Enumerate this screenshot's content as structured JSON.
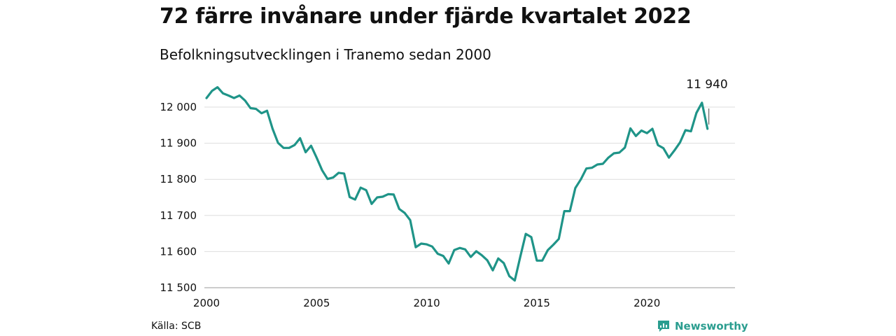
{
  "title": "72 färre invånare under fjärde kvartalet 2022",
  "subtitle": "Befolkningsutvecklingen i Tranemo sedan 2000",
  "source": "Källa: SCB",
  "brand": "Newsworthy",
  "colors": {
    "line": "#1f9488",
    "grid": "#dddddd",
    "brand": "#2a9d8f"
  },
  "chart_data": {
    "type": "line",
    "title": "72 färre invånare under fjärde kvartalet 2022",
    "subtitle": "Befolkningsutvecklingen i Tranemo sedan 2000",
    "xlabel": "",
    "ylabel": "",
    "xlim": [
      2000,
      2024
    ],
    "ylim": [
      11500,
      12000
    ],
    "x_ticks": [
      2000,
      2005,
      2010,
      2015,
      2020
    ],
    "x_tick_labels": [
      "2000",
      "2005",
      "2010",
      "2015",
      "2020"
    ],
    "y_ticks": [
      11500,
      11600,
      11700,
      11800,
      11900,
      12000
    ],
    "y_tick_labels": [
      "11 500",
      "11 600",
      "11 700",
      "11 800",
      "11 900",
      "12 000"
    ],
    "grid": true,
    "legend": "none",
    "end_label": "11 940",
    "series": [
      {
        "values": [
          {
            "x": 2000.0,
            "y": 12025
          },
          {
            "x": 2000.25,
            "y": 12045
          },
          {
            "x": 2000.5,
            "y": 12055
          },
          {
            "x": 2000.75,
            "y": 12038
          },
          {
            "x": 2001.0,
            "y": 12032
          },
          {
            "x": 2001.25,
            "y": 12025
          },
          {
            "x": 2001.5,
            "y": 12032
          },
          {
            "x": 2001.75,
            "y": 12018
          },
          {
            "x": 2002.0,
            "y": 11997
          },
          {
            "x": 2002.25,
            "y": 11995
          },
          {
            "x": 2002.5,
            "y": 11983
          },
          {
            "x": 2002.75,
            "y": 11990
          },
          {
            "x": 2003.0,
            "y": 11940
          },
          {
            "x": 2003.25,
            "y": 11901
          },
          {
            "x": 2003.5,
            "y": 11887
          },
          {
            "x": 2003.75,
            "y": 11887
          },
          {
            "x": 2004.0,
            "y": 11895
          },
          {
            "x": 2004.25,
            "y": 11914
          },
          {
            "x": 2004.5,
            "y": 11875
          },
          {
            "x": 2004.75,
            "y": 11893
          },
          {
            "x": 2005.0,
            "y": 11860
          },
          {
            "x": 2005.25,
            "y": 11825
          },
          {
            "x": 2005.5,
            "y": 11801
          },
          {
            "x": 2005.75,
            "y": 11805
          },
          {
            "x": 2006.0,
            "y": 11818
          },
          {
            "x": 2006.25,
            "y": 11816
          },
          {
            "x": 2006.5,
            "y": 11751
          },
          {
            "x": 2006.75,
            "y": 11744
          },
          {
            "x": 2007.0,
            "y": 11777
          },
          {
            "x": 2007.25,
            "y": 11770
          },
          {
            "x": 2007.5,
            "y": 11732
          },
          {
            "x": 2007.75,
            "y": 11750
          },
          {
            "x": 2008.0,
            "y": 11752
          },
          {
            "x": 2008.25,
            "y": 11759
          },
          {
            "x": 2008.5,
            "y": 11758
          },
          {
            "x": 2008.75,
            "y": 11718
          },
          {
            "x": 2009.0,
            "y": 11707
          },
          {
            "x": 2009.25,
            "y": 11687
          },
          {
            "x": 2009.5,
            "y": 11612
          },
          {
            "x": 2009.75,
            "y": 11622
          },
          {
            "x": 2010.0,
            "y": 11620
          },
          {
            "x": 2010.25,
            "y": 11614
          },
          {
            "x": 2010.5,
            "y": 11594
          },
          {
            "x": 2010.75,
            "y": 11588
          },
          {
            "x": 2011.0,
            "y": 11567
          },
          {
            "x": 2011.25,
            "y": 11604
          },
          {
            "x": 2011.5,
            "y": 11610
          },
          {
            "x": 2011.75,
            "y": 11606
          },
          {
            "x": 2012.0,
            "y": 11585
          },
          {
            "x": 2012.25,
            "y": 11601
          },
          {
            "x": 2012.5,
            "y": 11590
          },
          {
            "x": 2012.75,
            "y": 11576
          },
          {
            "x": 2013.0,
            "y": 11548
          },
          {
            "x": 2013.25,
            "y": 11581
          },
          {
            "x": 2013.5,
            "y": 11568
          },
          {
            "x": 2013.75,
            "y": 11532
          },
          {
            "x": 2014.0,
            "y": 11520
          },
          {
            "x": 2014.25,
            "y": 11586
          },
          {
            "x": 2014.5,
            "y": 11649
          },
          {
            "x": 2014.75,
            "y": 11640
          },
          {
            "x": 2015.0,
            "y": 11575
          },
          {
            "x": 2015.25,
            "y": 11575
          },
          {
            "x": 2015.5,
            "y": 11604
          },
          {
            "x": 2015.75,
            "y": 11619
          },
          {
            "x": 2016.0,
            "y": 11635
          },
          {
            "x": 2016.25,
            "y": 11712
          },
          {
            "x": 2016.5,
            "y": 11712
          },
          {
            "x": 2016.75,
            "y": 11776
          },
          {
            "x": 2017.0,
            "y": 11800
          },
          {
            "x": 2017.25,
            "y": 11830
          },
          {
            "x": 2017.5,
            "y": 11832
          },
          {
            "x": 2017.75,
            "y": 11841
          },
          {
            "x": 2018.0,
            "y": 11843
          },
          {
            "x": 2018.25,
            "y": 11860
          },
          {
            "x": 2018.5,
            "y": 11872
          },
          {
            "x": 2018.75,
            "y": 11874
          },
          {
            "x": 2019.0,
            "y": 11888
          },
          {
            "x": 2019.25,
            "y": 11941
          },
          {
            "x": 2019.5,
            "y": 11920
          },
          {
            "x": 2019.75,
            "y": 11935
          },
          {
            "x": 2020.0,
            "y": 11928
          },
          {
            "x": 2020.25,
            "y": 11940
          },
          {
            "x": 2020.5,
            "y": 11895
          },
          {
            "x": 2020.75,
            "y": 11886
          },
          {
            "x": 2021.0,
            "y": 11860
          },
          {
            "x": 2021.25,
            "y": 11880
          },
          {
            "x": 2021.5,
            "y": 11902
          },
          {
            "x": 2021.75,
            "y": 11936
          },
          {
            "x": 2022.0,
            "y": 11933
          },
          {
            "x": 2022.25,
            "y": 11984
          },
          {
            "x": 2022.5,
            "y": 12012
          },
          {
            "x": 2022.75,
            "y": 11940
          }
        ]
      }
    ]
  }
}
